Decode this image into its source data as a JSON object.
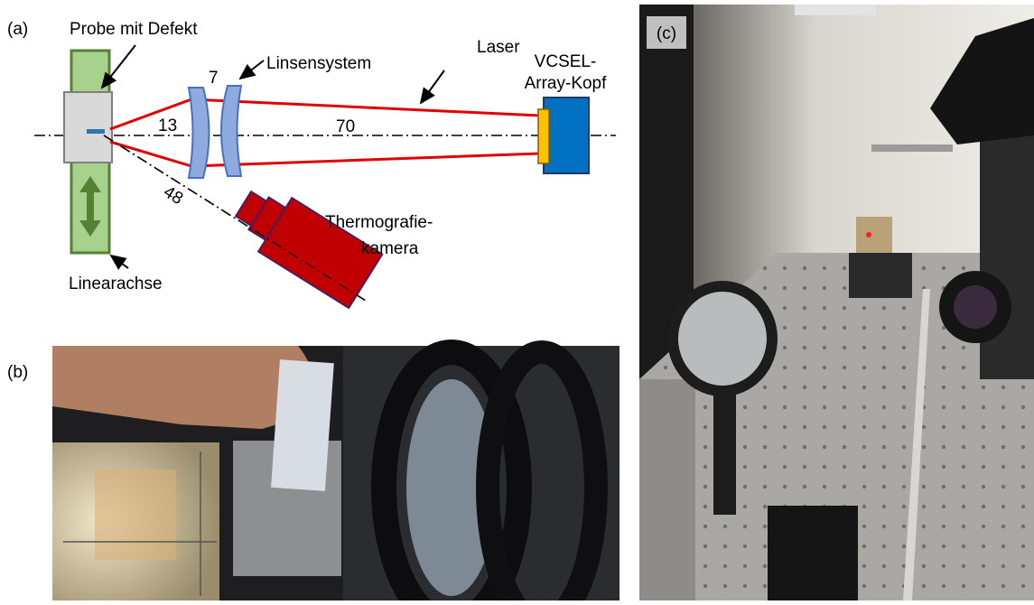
{
  "panel_labels": {
    "a": "(a)",
    "b": "(b)",
    "c": "(c)"
  },
  "diagram": {
    "sample": "Probe mit Defekt",
    "lens_system": "Linsensystem",
    "laser": "Laser",
    "vcsel": [
      "VCSEL-",
      "Array-Kopf"
    ],
    "camera": [
      "Thermografie-",
      "kamera"
    ],
    "linear_axis": "Linearachse",
    "distances": {
      "sample_lens": "13",
      "lens_gap": "7",
      "lens_vcsel": "70",
      "sample_camera": "48"
    }
  }
}
